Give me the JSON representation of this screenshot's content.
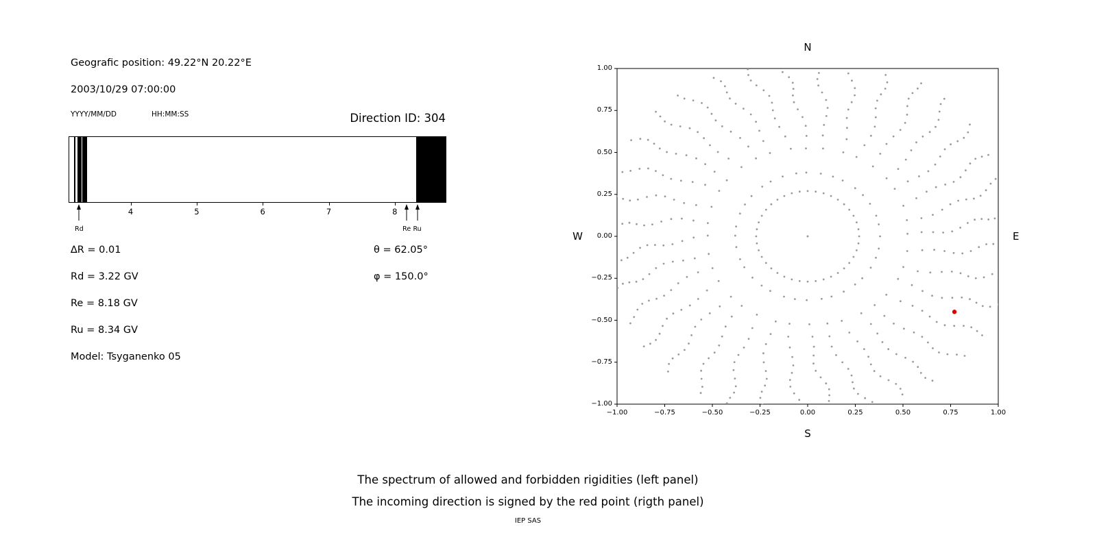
{
  "header": {
    "geo_position": "Geografic position: 49.22°N 20.22°E",
    "datetime": "2003/10/29 07:00:00",
    "date_format": "YYYY/MM/DD",
    "time_format": "HH:MM:SS",
    "direction_id": "Direction ID: 304"
  },
  "params": {
    "left": [
      "∆R = 0.01",
      "Rd = 3.22 GV",
      "Re = 8.18 GV",
      "Ru = 8.34 GV",
      "Model: Tsyganenko 05"
    ],
    "right": [
      "θ = 62.05°",
      "φ = 150.0°"
    ]
  },
  "caption": {
    "line1": "The spectrum of allowed and forbidden rigidities (left panel)",
    "line2": "The incoming direction is signed by the red point (rigth panel)",
    "credit": "IEP SAS"
  },
  "chart_data": [
    {
      "type": "bar",
      "id": "rigidity-spectrum",
      "xlim": [
        3.07,
        8.77
      ],
      "xticks": [
        4,
        5,
        6,
        7,
        8
      ],
      "xtick_labels": [
        "4",
        "5",
        "6",
        "7",
        "8"
      ],
      "allowed_color": "#ffffff",
      "forbidden_color": "#000000",
      "forbidden_bands": [
        [
          3.145,
          3.165
        ],
        [
          3.19,
          3.26
        ],
        [
          3.27,
          3.34
        ],
        [
          8.32,
          8.77
        ]
      ],
      "markers": [
        {
          "label": "Rd",
          "value": 3.22
        },
        {
          "label": "Re",
          "value": 8.18
        },
        {
          "label": "Ru",
          "value": 8.34
        }
      ],
      "grid": false
    },
    {
      "type": "scatter",
      "id": "incoming-direction-map",
      "compass": {
        "top": "N",
        "bottom": "S",
        "left": "W",
        "right": "E"
      },
      "xlim": [
        -1.0,
        1.0
      ],
      "ylim": [
        -1.0,
        1.0
      ],
      "xticks": [
        -1.0,
        -0.75,
        -0.5,
        -0.25,
        0,
        0.25,
        0.5,
        0.75,
        1.0
      ],
      "yticks": [
        1.0,
        0.75,
        0.5,
        0.25,
        0,
        -0.25,
        -0.5,
        -0.75,
        -1.0
      ],
      "xtick_labels": [
        "−1.00",
        "−0.75",
        "−0.50",
        "−0.25",
        "0.00",
        "0.25",
        "0.50",
        "0.75",
        "1.00"
      ],
      "ytick_labels": [
        "1.00",
        "0.75",
        "0.50",
        "0.25",
        "0.00",
        "−0.25",
        "−0.50",
        "−0.75",
        "−1.00"
      ],
      "dot_color": "#9a9a9a",
      "incoming_direction": {
        "x": 0.77,
        "y": -0.45,
        "color": "#dd0000"
      },
      "center_dot": true,
      "dot_pattern": {
        "spokes": 36,
        "spoke_points": 13,
        "r_inner": 0.38,
        "r_outer": 1.02,
        "outer_bulge": 0.07,
        "curvature_deg": 8,
        "density_power": 0.6,
        "ring": {
          "radius": 0.27,
          "points": 40
        }
      },
      "grid": false
    }
  ]
}
